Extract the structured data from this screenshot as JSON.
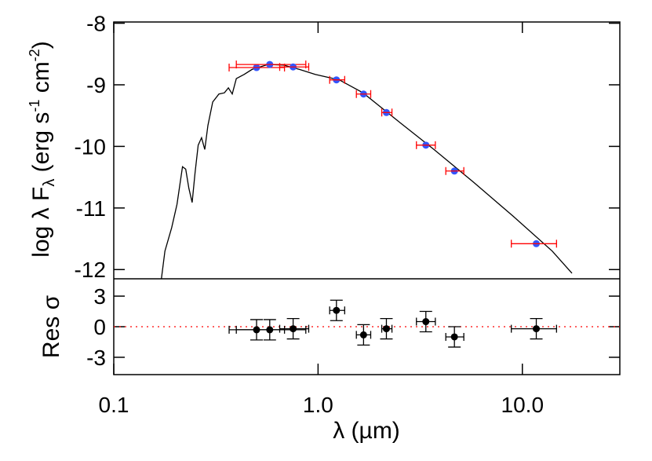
{
  "chart_data": [
    {
      "type": "sed",
      "ylabel": [
        "log λ F",
        "λ",
        " (erg s",
        "-1",
        " cm",
        "-2",
        ")"
      ],
      "xlim": [
        0.1,
        30
      ],
      "ylim": [
        -12.15,
        -7.98
      ],
      "yticks": [
        -8,
        -9,
        -10,
        -11,
        -12
      ],
      "xscale": "log",
      "model": {
        "color": "#000000",
        "x": [
          0.171,
          0.178,
          0.192,
          0.204,
          0.217,
          0.225,
          0.233,
          0.242,
          0.25,
          0.259,
          0.269,
          0.279,
          0.289,
          0.305,
          0.327,
          0.348,
          0.364,
          0.38,
          0.398,
          0.435,
          0.475,
          0.568,
          0.679,
          0.811,
          0.969,
          1.27,
          1.66,
          2.36,
          3.69,
          5.76,
          8.99,
          14.0,
          17.5
        ],
        "values": [
          -12.15,
          -11.7,
          -11.32,
          -10.94,
          -10.33,
          -10.37,
          -10.68,
          -10.91,
          -10.43,
          -9.98,
          -9.86,
          -10.05,
          -9.66,
          -9.28,
          -9.15,
          -9.13,
          -9.05,
          -9.15,
          -8.9,
          -8.83,
          -8.75,
          -8.67,
          -8.68,
          -8.75,
          -8.83,
          -8.92,
          -9.13,
          -9.54,
          -10.05,
          -10.58,
          -11.13,
          -11.7,
          -12.06
        ]
      },
      "points": {
        "color": "#3355ff",
        "error_color": "#ff0000",
        "x": [
          0.5,
          0.58,
          0.755,
          1.23,
          1.67,
          2.16,
          3.37,
          4.65,
          11.7
        ],
        "x_low": [
          0.367,
          0.398,
          0.649,
          1.14,
          1.54,
          2.05,
          3.03,
          4.22,
          8.83
        ],
        "x_high": [
          0.685,
          0.871,
          0.9,
          1.35,
          1.81,
          2.3,
          3.75,
          5.17,
          14.7
        ],
        "values": [
          -8.72,
          -8.67,
          -8.71,
          -8.92,
          -9.15,
          -9.45,
          -9.98,
          -10.4,
          -11.58
        ]
      }
    },
    {
      "type": "residual",
      "ylabel": "Res σ",
      "xlabel": "λ (µm)",
      "xlim": [
        0.1,
        30
      ],
      "ylim": [
        -4.7,
        4.7
      ],
      "yticks": [
        3,
        0,
        -3
      ],
      "xscale": "log",
      "xticks": [
        0.1,
        {
          "value": 1,
          "label": "1.0"
        },
        {
          "value": 10,
          "label": "10.0"
        }
      ],
      "refline": 0,
      "refline_color": "#ff0000",
      "color": "#000000",
      "x": [
        0.5,
        0.58,
        0.755,
        1.23,
        1.67,
        2.16,
        3.37,
        4.65,
        11.7
      ],
      "x_low": [
        0.367,
        0.398,
        0.649,
        1.14,
        1.54,
        2.05,
        3.03,
        4.22,
        8.83
      ],
      "x_high": [
        0.685,
        0.871,
        0.9,
        1.35,
        1.81,
        2.3,
        3.75,
        5.17,
        14.7
      ],
      "values": [
        -0.3,
        -0.3,
        -0.2,
        1.6,
        -0.8,
        -0.2,
        0.5,
        -1.0,
        -0.2
      ],
      "yerr": [
        1,
        1,
        1,
        1,
        1,
        1,
        1,
        1,
        1
      ]
    }
  ]
}
